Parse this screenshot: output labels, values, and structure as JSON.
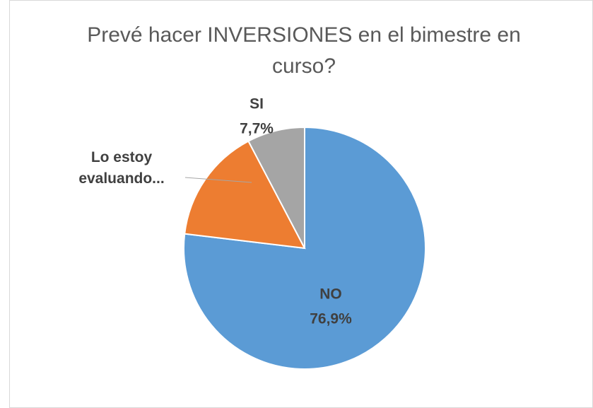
{
  "chart_data": {
    "type": "pie",
    "title": "Prevé hacer INVERSIONES en el bimestre en curso?",
    "categories": [
      "NO",
      "Lo estoy evaluando...",
      "SI"
    ],
    "values": [
      76.9,
      15.4,
      7.7
    ],
    "value_labels": [
      "76,9%",
      null,
      "7,7%"
    ],
    "colors": [
      "#5b9bd5",
      "#ed7d31",
      "#a5a5a5"
    ]
  }
}
